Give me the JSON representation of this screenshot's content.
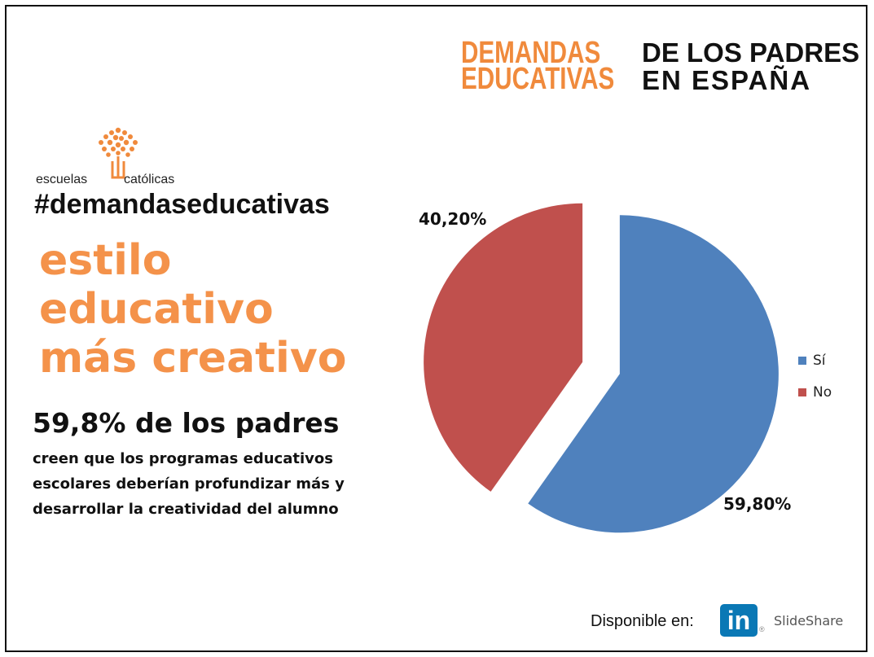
{
  "header": {
    "word1": "DEMANDAS",
    "word2": "EDUCATIVAS",
    "word3": "DE LOS PADRES",
    "word4": "EN ESPAÑA"
  },
  "logo": {
    "left": "escuelas",
    "right": "católicas",
    "icon": "tree-icon"
  },
  "hashtag": "#demandaseducativas",
  "headline": [
    "estilo",
    "educativo",
    "más creativo"
  ],
  "stat": "59,8% de los padres",
  "description": [
    "creen que los programas educativos",
    "escolares deberían profundizar más y",
    "desarrollar la creatividad del alumno"
  ],
  "chart_data": {
    "type": "pie",
    "title": "",
    "slices": [
      {
        "label": "Sí",
        "value": 59.8,
        "data_label": "59,80%",
        "color": "#4f81bd"
      },
      {
        "label": "No",
        "value": 40.2,
        "data_label": "40,20%",
        "color": "#c0504d"
      }
    ],
    "exploded": true,
    "legend": {
      "placement": "right"
    }
  },
  "footer": {
    "available": "Disponible en:",
    "brand_icon": "linkedin-icon",
    "linkedin_text": "in",
    "slideshare": "SlideShare"
  },
  "colors": {
    "accent_orange": "#f4924a",
    "header_orange": "#f08a3c",
    "linkedin_blue": "#0a78b5"
  }
}
